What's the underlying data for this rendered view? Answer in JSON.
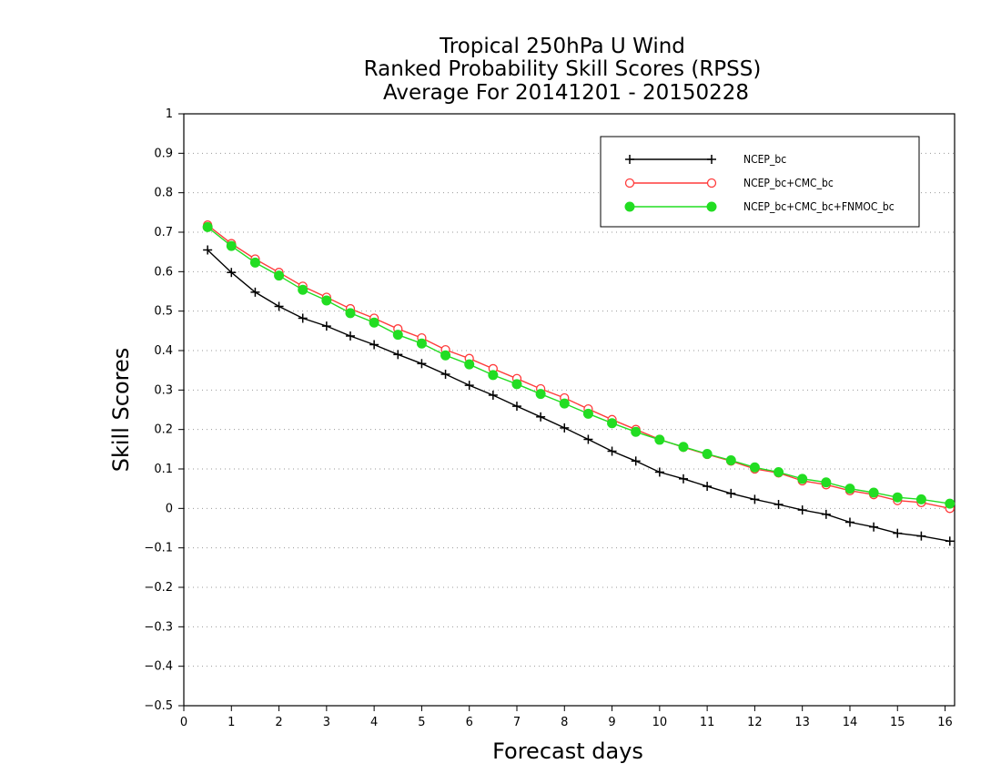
{
  "chart_data": {
    "type": "line",
    "title_lines": [
      "Tropical 250hPa U Wind",
      "Ranked Probability Skill Scores (RPSS)",
      "Average For 20141201 - 20150228"
    ],
    "xlabel": "Forecast days",
    "ylabel": "Skill Scores",
    "xlim": [
      0,
      16.2
    ],
    "ylim": [
      -0.5,
      1
    ],
    "xticks": [
      0,
      1,
      2,
      3,
      4,
      5,
      6,
      7,
      8,
      9,
      10,
      11,
      12,
      13,
      14,
      15,
      16
    ],
    "yticks": [
      1,
      0.9,
      0.8,
      0.7,
      0.6,
      0.5,
      0.4,
      0.3,
      0.2,
      0.1,
      0,
      -0.1,
      -0.2,
      -0.3,
      -0.4,
      -0.5
    ],
    "ytick_labels": [
      "1",
      "0.9",
      "0.8",
      "0.7",
      "0.6",
      "0.5",
      "0.4",
      "0.3",
      "0.2",
      "0.1",
      "0",
      "−0.1",
      "−0.2",
      "−0.3",
      "−0.4",
      "−0.5"
    ],
    "grid": "dotted horizontal",
    "legend_position": "top-right",
    "x": [
      0.5,
      1,
      1.5,
      2,
      2.5,
      3,
      3.5,
      4,
      4.5,
      5,
      5.5,
      6,
      6.5,
      7,
      7.5,
      8,
      8.5,
      9,
      9.5,
      10,
      10.5,
      11,
      11.5,
      12,
      12.5,
      13,
      13.5,
      14,
      14.5,
      15,
      15.5,
      16.1
    ],
    "series": [
      {
        "name": "NCEP_bc",
        "color": "#000000",
        "marker": "plus",
        "values": [
          0.655,
          0.598,
          0.548,
          0.512,
          0.482,
          0.462,
          0.437,
          0.415,
          0.39,
          0.367,
          0.34,
          0.312,
          0.287,
          0.259,
          0.232,
          0.204,
          0.175,
          0.145,
          0.12,
          0.092,
          0.075,
          0.056,
          0.038,
          0.023,
          0.01,
          -0.004,
          -0.015,
          -0.035,
          -0.047,
          -0.063,
          -0.07,
          -0.083
        ]
      },
      {
        "name": "NCEP_bc+CMC_bc",
        "color": "#ff3b3b",
        "marker": "open-circle",
        "values": [
          0.718,
          0.671,
          0.632,
          0.598,
          0.563,
          0.535,
          0.506,
          0.482,
          0.455,
          0.432,
          0.402,
          0.38,
          0.354,
          0.329,
          0.303,
          0.28,
          0.252,
          0.225,
          0.2,
          0.175,
          0.155,
          0.137,
          0.12,
          0.1,
          0.09,
          0.07,
          0.06,
          0.045,
          0.035,
          0.02,
          0.015,
          0.0
        ]
      },
      {
        "name": "NCEP_bc+CMC_bc+FNMOC_bc",
        "color": "#22dd22",
        "marker": "filled-circle",
        "values": [
          0.713,
          0.665,
          0.623,
          0.59,
          0.554,
          0.527,
          0.495,
          0.471,
          0.44,
          0.418,
          0.388,
          0.365,
          0.338,
          0.315,
          0.29,
          0.266,
          0.24,
          0.216,
          0.194,
          0.174,
          0.156,
          0.138,
          0.122,
          0.104,
          0.092,
          0.075,
          0.066,
          0.05,
          0.04,
          0.028,
          0.023,
          0.012
        ]
      }
    ]
  }
}
